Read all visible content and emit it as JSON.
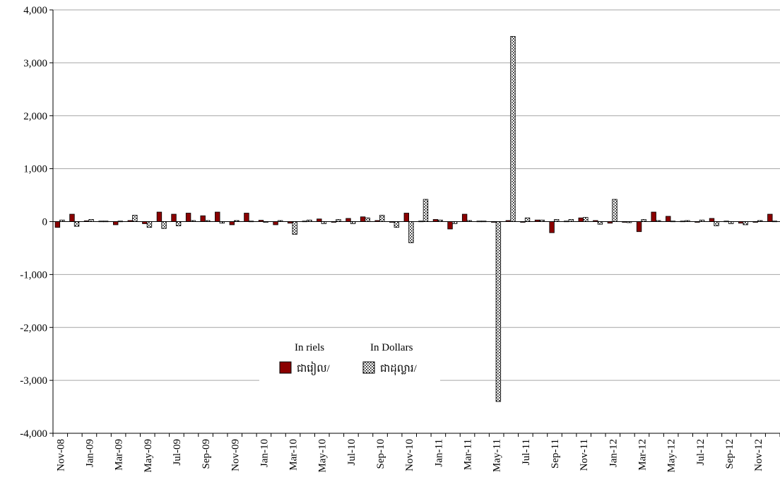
{
  "chart_data": {
    "type": "bar",
    "categories": [
      "Nov-08",
      "Dec-08",
      "Jan-09",
      "Feb-09",
      "Mar-09",
      "Apr-09",
      "May-09",
      "Jun-09",
      "Jul-09",
      "Aug-09",
      "Sep-09",
      "Oct-09",
      "Nov-09",
      "Dec-09",
      "Jan-10",
      "Feb-10",
      "Mar-10",
      "Apr-10",
      "May-10",
      "Jun-10",
      "Jul-10",
      "Aug-10",
      "Sep-10",
      "Oct-10",
      "Nov-10",
      "Dec-10",
      "Jan-11",
      "Feb-11",
      "Mar-11",
      "Apr-11",
      "May-11",
      "Jun-11",
      "Jul-11",
      "Aug-11",
      "Sep-11",
      "Oct-11",
      "Nov-11",
      "Dec-11",
      "Jan-12",
      "Feb-12",
      "Mar-12",
      "Apr-12",
      "May-12",
      "Jun-12",
      "Jul-12",
      "Aug-12",
      "Sep-12",
      "Oct-12",
      "Nov-12",
      "Dec-12"
    ],
    "tick_labels": [
      "Nov-08",
      "Jan-09",
      "Mar-09",
      "May-09",
      "Jul-09",
      "Sep-09",
      "Nov-09",
      "Jan-10",
      "Mar-10",
      "May-10",
      "Jul-10",
      "Sep-10",
      "Nov-10",
      "Jan-11",
      "Mar-11",
      "May-11",
      "Jul-11",
      "Sep-11",
      "Nov-11",
      "Jan-12",
      "Mar-12",
      "May-12",
      "Jul-12",
      "Sep-12",
      "Nov-12"
    ],
    "series": [
      {
        "name": "In riels",
        "values": [
          -110,
          140,
          15,
          10,
          -60,
          20,
          -40,
          180,
          140,
          160,
          110,
          180,
          -60,
          160,
          25,
          -60,
          -30,
          10,
          50,
          0,
          60,
          90,
          20,
          -10,
          160,
          10,
          40,
          -140,
          140,
          10,
          -10,
          20,
          -10,
          30,
          -210,
          10,
          70,
          20,
          -30,
          -10,
          -190,
          180,
          100,
          10,
          -10,
          60,
          10,
          -30,
          -10,
          140
        ],
        "color": "#8B0000"
      },
      {
        "name": "In Dollars",
        "values": [
          30,
          -90,
          40,
          10,
          10,
          120,
          -110,
          -130,
          -80,
          20,
          20,
          -30,
          20,
          10,
          -10,
          20,
          -240,
          30,
          -40,
          40,
          -40,
          70,
          120,
          -110,
          -400,
          420,
          30,
          -40,
          20,
          10,
          -3400,
          3500,
          70,
          30,
          40,
          40,
          80,
          -50,
          420,
          -20,
          40,
          20,
          10,
          20,
          30,
          -80,
          -40,
          -60,
          20,
          10
        ],
        "color": "#ffffff"
      }
    ],
    "ylim": [
      -4000,
      4000
    ],
    "yticks": [
      -4000,
      -3000,
      -2000,
      -1000,
      0,
      1000,
      2000,
      3000,
      4000
    ],
    "ytick_labels": [
      "-4,000",
      "-3,000",
      "-2,000",
      "-1,000",
      "0",
      "1,000",
      "2,000",
      "3,000",
      "4,000"
    ],
    "grid": true,
    "legend": {
      "placement": "center-bottom",
      "headers": [
        "In riels",
        "In Dollars"
      ],
      "entries": [
        "ជារៀល/",
        "ជាដុល្លារ/"
      ]
    },
    "xlabel": "",
    "ylabel": "",
    "title": ""
  }
}
